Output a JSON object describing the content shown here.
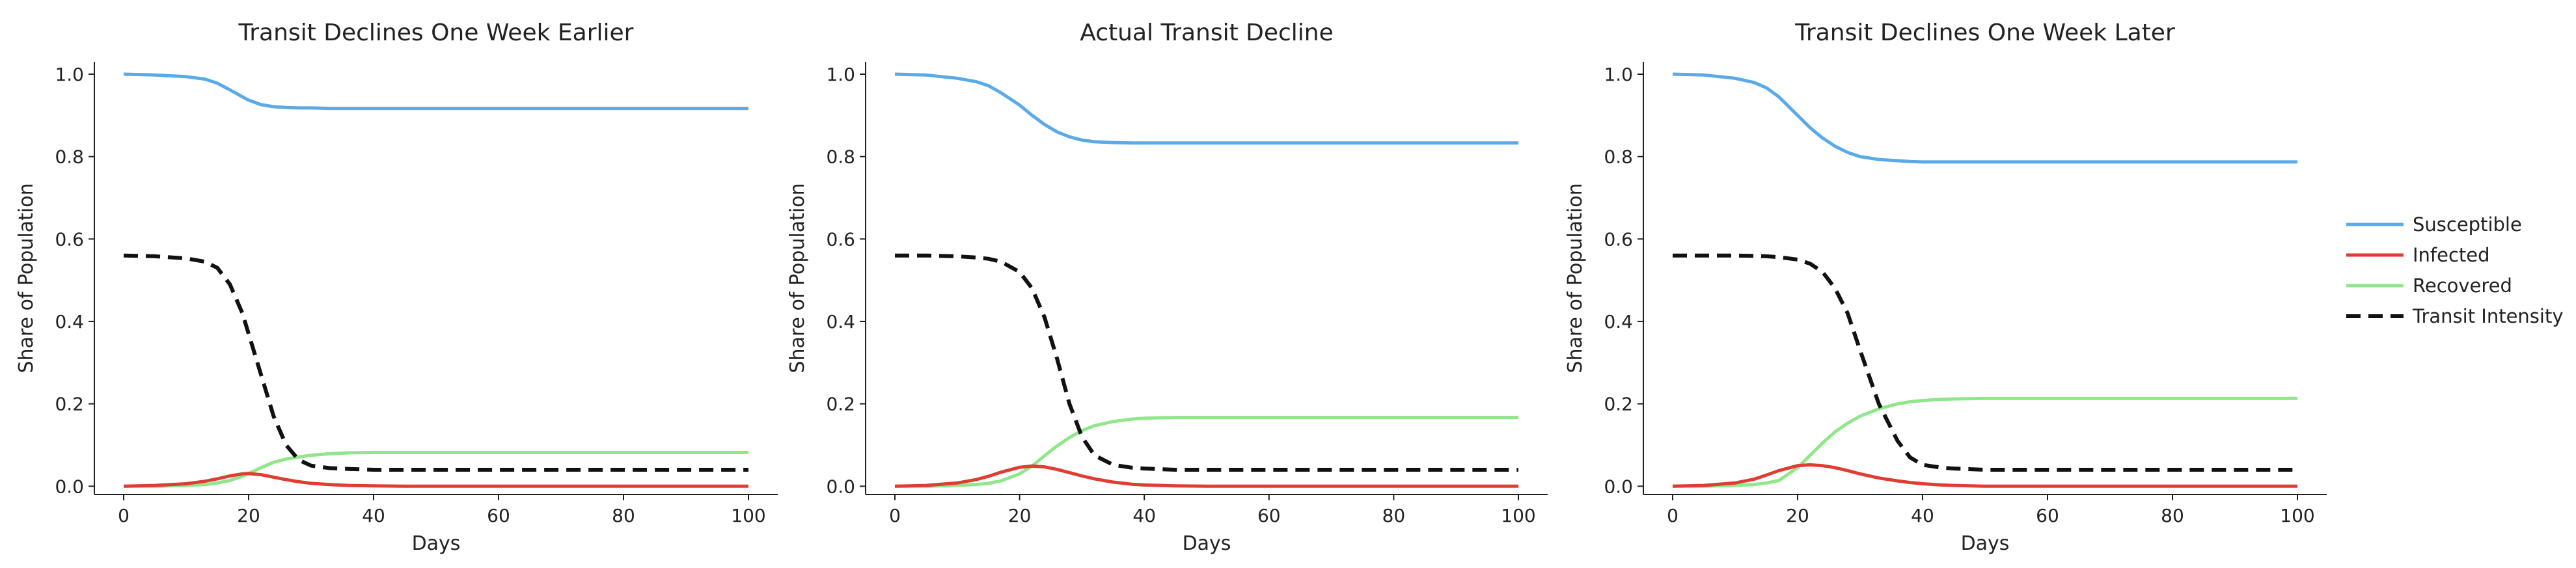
{
  "colors": {
    "susceptible": "#5aaae8",
    "infected": "#e03c32",
    "recovered": "#90e68a",
    "transit": "#111111"
  },
  "legend": {
    "placement": "right",
    "items": [
      {
        "label": "Susceptible",
        "color": "#5aaae8",
        "style": "solid"
      },
      {
        "label": "Infected",
        "color": "#e03c32",
        "style": "solid"
      },
      {
        "label": "Recovered",
        "color": "#90e68a",
        "style": "solid"
      },
      {
        "label": "Transit Intensity",
        "color": "#111111",
        "style": "dashed"
      }
    ]
  },
  "chart_data": [
    {
      "type": "line",
      "title": "Transit Declines One Week Earlier",
      "xlabel": "Days",
      "ylabel": "Share of Population",
      "xlim": [
        0,
        100
      ],
      "ylim": [
        -0.02,
        1.03
      ],
      "xticks": [
        0,
        20,
        40,
        60,
        80,
        100
      ],
      "yticks": [
        0.0,
        0.2,
        0.4,
        0.6,
        0.8,
        1.0
      ],
      "grid": false,
      "x": [
        0,
        5,
        10,
        13,
        15,
        17,
        19,
        20,
        22,
        24,
        26,
        28,
        30,
        33,
        36,
        40,
        45,
        50,
        60,
        70,
        80,
        90,
        100
      ],
      "series": [
        {
          "name": "Susceptible",
          "values": [
            1.0,
            0.998,
            0.994,
            0.988,
            0.978,
            0.962,
            0.945,
            0.937,
            0.926,
            0.921,
            0.919,
            0.918,
            0.918,
            0.917,
            0.917,
            0.917,
            0.917,
            0.917,
            0.917,
            0.917,
            0.917,
            0.917,
            0.917
          ]
        },
        {
          "name": "Infected",
          "values": [
            0.0,
            0.002,
            0.006,
            0.012,
            0.018,
            0.025,
            0.03,
            0.031,
            0.028,
            0.022,
            0.016,
            0.011,
            0.007,
            0.004,
            0.002,
            0.001,
            0.0,
            0.0,
            0.0,
            0.0,
            0.0,
            0.0,
            0.0
          ]
        },
        {
          "name": "Recovered",
          "values": [
            0.0,
            0.0,
            0.002,
            0.004,
            0.008,
            0.014,
            0.024,
            0.031,
            0.045,
            0.058,
            0.066,
            0.071,
            0.075,
            0.079,
            0.081,
            0.082,
            0.082,
            0.082,
            0.082,
            0.082,
            0.082,
            0.082,
            0.082
          ]
        },
        {
          "name": "Transit Intensity",
          "values": [
            0.56,
            0.558,
            0.553,
            0.545,
            0.53,
            0.49,
            0.42,
            0.37,
            0.27,
            0.17,
            0.1,
            0.064,
            0.05,
            0.044,
            0.042,
            0.04,
            0.04,
            0.04,
            0.04,
            0.04,
            0.04,
            0.04,
            0.04
          ]
        }
      ]
    },
    {
      "type": "line",
      "title": "Actual Transit Decline",
      "xlabel": "Days",
      "ylabel": "Share of Population",
      "xlim": [
        0,
        100
      ],
      "ylim": [
        -0.02,
        1.03
      ],
      "xticks": [
        0,
        20,
        40,
        60,
        80,
        100
      ],
      "yticks": [
        0.0,
        0.2,
        0.4,
        0.6,
        0.8,
        1.0
      ],
      "grid": false,
      "x": [
        0,
        5,
        10,
        13,
        15,
        17,
        20,
        22,
        24,
        26,
        28,
        30,
        32,
        35,
        38,
        40,
        45,
        50,
        60,
        70,
        80,
        90,
        100
      ],
      "series": [
        {
          "name": "Susceptible",
          "values": [
            1.0,
            0.998,
            0.99,
            0.982,
            0.972,
            0.955,
            0.925,
            0.9,
            0.878,
            0.86,
            0.848,
            0.84,
            0.836,
            0.834,
            0.833,
            0.833,
            0.833,
            0.833,
            0.833,
            0.833,
            0.833,
            0.833,
            0.833
          ]
        },
        {
          "name": "Infected",
          "values": [
            0.0,
            0.002,
            0.008,
            0.016,
            0.024,
            0.034,
            0.046,
            0.049,
            0.047,
            0.041,
            0.033,
            0.025,
            0.018,
            0.01,
            0.005,
            0.003,
            0.001,
            0.0,
            0.0,
            0.0,
            0.0,
            0.0,
            0.0
          ]
        },
        {
          "name": "Recovered",
          "values": [
            0.0,
            0.0,
            0.002,
            0.004,
            0.007,
            0.013,
            0.03,
            0.049,
            0.074,
            0.098,
            0.118,
            0.135,
            0.147,
            0.157,
            0.163,
            0.165,
            0.167,
            0.167,
            0.167,
            0.167,
            0.167,
            0.167,
            0.167
          ]
        },
        {
          "name": "Transit Intensity",
          "values": [
            0.56,
            0.56,
            0.558,
            0.555,
            0.552,
            0.545,
            0.52,
            0.48,
            0.41,
            0.31,
            0.2,
            0.12,
            0.075,
            0.052,
            0.045,
            0.043,
            0.04,
            0.04,
            0.04,
            0.04,
            0.04,
            0.04,
            0.04
          ]
        }
      ]
    },
    {
      "type": "line",
      "title": "Transit Declines One Week Later",
      "xlabel": "Days",
      "ylabel": "Share of Population",
      "xlim": [
        0,
        100
      ],
      "ylim": [
        -0.02,
        1.03
      ],
      "xticks": [
        0,
        20,
        40,
        60,
        80,
        100
      ],
      "yticks": [
        0.0,
        0.2,
        0.4,
        0.6,
        0.8,
        1.0
      ],
      "grid": false,
      "x": [
        0,
        5,
        10,
        13,
        15,
        17,
        20,
        22,
        24,
        26,
        28,
        30,
        33,
        36,
        38,
        40,
        43,
        45,
        50,
        60,
        70,
        80,
        90,
        100
      ],
      "series": [
        {
          "name": "Susceptible",
          "values": [
            1.0,
            0.998,
            0.99,
            0.98,
            0.967,
            0.945,
            0.9,
            0.87,
            0.845,
            0.825,
            0.81,
            0.8,
            0.793,
            0.79,
            0.788,
            0.787,
            0.787,
            0.787,
            0.787,
            0.787,
            0.787,
            0.787,
            0.787,
            0.787
          ]
        },
        {
          "name": "Infected",
          "values": [
            0.0,
            0.002,
            0.008,
            0.017,
            0.027,
            0.038,
            0.05,
            0.052,
            0.05,
            0.045,
            0.038,
            0.03,
            0.02,
            0.013,
            0.009,
            0.006,
            0.003,
            0.002,
            0.0,
            0.0,
            0.0,
            0.0,
            0.0,
            0.0
          ]
        },
        {
          "name": "Recovered",
          "values": [
            0.0,
            0.0,
            0.002,
            0.004,
            0.008,
            0.014,
            0.045,
            0.075,
            0.105,
            0.132,
            0.153,
            0.17,
            0.188,
            0.2,
            0.205,
            0.208,
            0.211,
            0.212,
            0.213,
            0.213,
            0.213,
            0.213,
            0.213,
            0.213
          ]
        },
        {
          "name": "Transit Intensity",
          "values": [
            0.56,
            0.56,
            0.56,
            0.559,
            0.558,
            0.556,
            0.55,
            0.54,
            0.52,
            0.48,
            0.42,
            0.33,
            0.2,
            0.11,
            0.07,
            0.052,
            0.045,
            0.043,
            0.04,
            0.04,
            0.04,
            0.04,
            0.04,
            0.04
          ]
        }
      ]
    }
  ]
}
